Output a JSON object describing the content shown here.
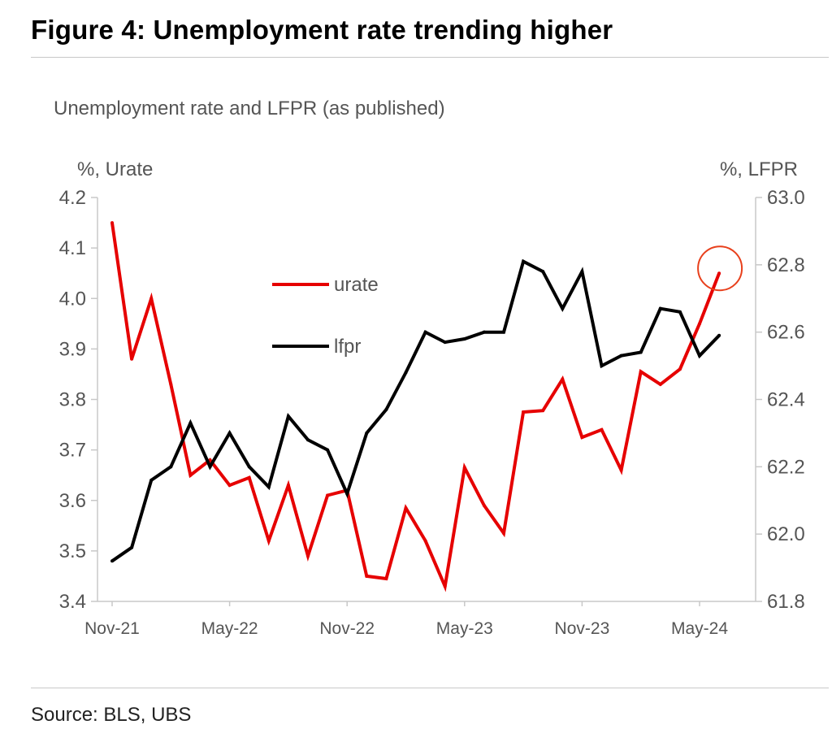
{
  "figure": {
    "title": "Figure 4: Unemployment rate trending higher",
    "subtitle": "Unemployment rate and LFPR (as published)",
    "left_unit": "%, Urate",
    "right_unit": "%, LFPR",
    "source": "Source: BLS, UBS"
  },
  "chart_data": {
    "type": "line",
    "title": "",
    "subtitle": "Unemployment rate and LFPR (as published)",
    "x": [
      "Nov-21",
      "Dec-21",
      "Jan-22",
      "Feb-22",
      "Mar-22",
      "Apr-22",
      "May-22",
      "Jun-22",
      "Jul-22",
      "Aug-22",
      "Sep-22",
      "Oct-22",
      "Nov-22",
      "Dec-22",
      "Jan-23",
      "Feb-23",
      "Mar-23",
      "Apr-23",
      "May-23",
      "Jun-23",
      "Jul-23",
      "Aug-23",
      "Sep-23",
      "Oct-23",
      "Nov-23",
      "Dec-23",
      "Jan-24",
      "Feb-24",
      "Mar-24",
      "Apr-24",
      "May-24",
      "Jun-24"
    ],
    "x_tick_labels": [
      "Nov-21",
      "May-22",
      "Nov-22",
      "May-23",
      "Nov-23",
      "May-24"
    ],
    "x_tick_indices": [
      0,
      6,
      12,
      18,
      24,
      30
    ],
    "series": [
      {
        "name": "urate",
        "axis": "left",
        "color": "#e60000",
        "values": [
          4.15,
          3.88,
          4.0,
          3.83,
          3.65,
          3.68,
          3.63,
          3.645,
          3.52,
          3.63,
          3.49,
          3.61,
          3.62,
          3.45,
          3.445,
          3.585,
          3.52,
          3.43,
          3.665,
          3.59,
          3.535,
          3.775,
          3.778,
          3.84,
          3.725,
          3.74,
          3.66,
          3.855,
          3.83,
          3.86,
          3.95,
          4.05
        ]
      },
      {
        "name": "lfpr",
        "axis": "right",
        "color": "#000000",
        "values": [
          61.92,
          61.96,
          62.16,
          62.2,
          62.33,
          62.2,
          62.3,
          62.2,
          62.14,
          62.35,
          62.28,
          62.25,
          62.12,
          62.3,
          62.37,
          62.48,
          62.6,
          62.57,
          62.58,
          62.6,
          62.6,
          62.81,
          62.78,
          62.67,
          62.78,
          62.5,
          62.53,
          62.54,
          62.67,
          62.66,
          62.53,
          62.59
        ]
      }
    ],
    "left_axis": {
      "label": "%, Urate",
      "ylim": [
        3.4,
        4.2
      ],
      "ticks": [
        "3.4",
        "3.5",
        "3.6",
        "3.7",
        "3.8",
        "3.9",
        "4.0",
        "4.1",
        "4.2"
      ]
    },
    "right_axis": {
      "label": "%, LFPR",
      "ylim": [
        61.8,
        63.0
      ],
      "ticks": [
        "61.8",
        "62.0",
        "62.2",
        "62.4",
        "62.6",
        "62.8",
        "63.0"
      ]
    },
    "legend": {
      "placement": "upper-center",
      "entries": [
        "urate",
        "lfpr"
      ]
    },
    "annotation": {
      "type": "circle",
      "series": "urate",
      "at": "Jun-24",
      "color": "#e8401c"
    },
    "grid": false
  }
}
